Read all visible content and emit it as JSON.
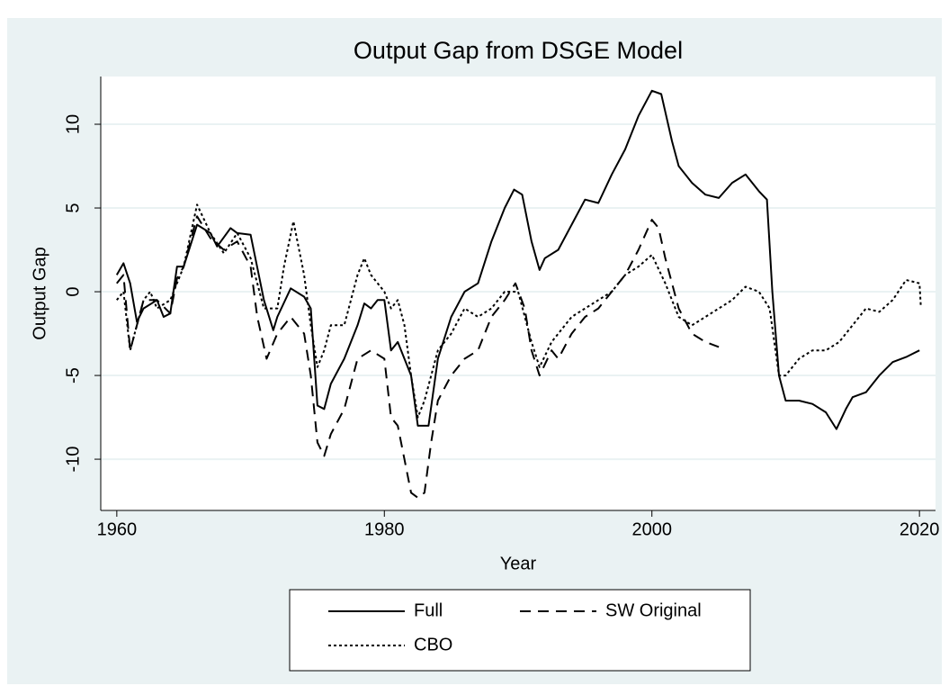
{
  "chart_data": {
    "type": "line",
    "title": "Output Gap from DSGE Model",
    "x_label": "Year",
    "y_label": "Output Gap",
    "xlim": [
      1958.8,
      2021.2
    ],
    "ylim": [
      -13.06,
      12.85
    ],
    "xticks": [
      1960,
      1980,
      2000,
      2020
    ],
    "yticks": [
      -10,
      -5,
      0,
      5,
      10
    ],
    "grid": true,
    "series": [
      {
        "name": "Full",
        "color": "#000000",
        "dash": "solid",
        "x": [
          1960,
          1960.5,
          1961,
          1961.5,
          1962,
          1963,
          1963.5,
          1964,
          1964.5,
          1965,
          1966,
          1967,
          1967.5,
          1968.5,
          1969,
          1970,
          1971,
          1971.7,
          1972,
          1973,
          1974,
          1974.5,
          1975,
          1975.5,
          1976,
          1977,
          1978,
          1978.5,
          1979,
          1979.5,
          1980,
          1980.5,
          1981,
          1981.5,
          1982,
          1982.5,
          1983.3,
          1984,
          1985,
          1986,
          1987,
          1988,
          1989,
          1989.7,
          1990.3,
          1991,
          1991.6,
          1992,
          1993,
          1994,
          1995,
          1996,
          1997,
          1998,
          1999,
          2000,
          2000.7,
          2001.5,
          2002,
          2003,
          2004,
          2005,
          2006,
          2007,
          2008,
          2008.6,
          2009,
          2009.5,
          2010,
          2011,
          2012,
          2013,
          2013.8,
          2014.5,
          2015,
          2016,
          2017,
          2018,
          2019,
          2020
        ],
        "values": [
          1,
          1.7,
          0.5,
          -1.8,
          -1,
          -0.5,
          -1.5,
          -1.3,
          1.5,
          1.5,
          4,
          3.5,
          2.7,
          3.8,
          3.5,
          3.4,
          -0.5,
          -2.3,
          -1.5,
          0.2,
          -0.3,
          -1,
          -6.8,
          -7,
          -5.5,
          -4,
          -2,
          -0.7,
          -1,
          -0.5,
          -0.5,
          -3.5,
          -3,
          -4,
          -5,
          -8,
          -8,
          -4,
          -1.5,
          0,
          0.5,
          3,
          5,
          6.1,
          5.8,
          3,
          1.3,
          2,
          2.5,
          4,
          5.5,
          5.3,
          7,
          8.5,
          10.5,
          12,
          11.8,
          9,
          7.5,
          6.5,
          5.8,
          5.6,
          6.5,
          7,
          6,
          5.5,
          0,
          -5,
          -6.5,
          -6.5,
          -6.7,
          -7.2,
          -8.2,
          -7,
          -6.3,
          -6,
          -5,
          -4.2,
          -3.9,
          -3.5
        ]
      },
      {
        "name": "SW Original",
        "color": "#000000",
        "dash": "dashed",
        "x": [
          1960,
          1960.5,
          1961,
          1961.5,
          1962,
          1963,
          1964,
          1964.5,
          1965,
          1966,
          1967,
          1968,
          1969,
          1970,
          1970.5,
          1971.2,
          1972,
          1973,
          1974,
          1974.5,
          1975,
          1975.5,
          1976,
          1977,
          1978,
          1979,
          1980,
          1980.5,
          1981,
          1981.5,
          1982,
          1982.5,
          1983,
          1983.5,
          1984,
          1985,
          1986,
          1987,
          1988,
          1989,
          1989.8,
          1990.5,
          1991,
          1991.6,
          1992.5,
          1993,
          1994,
          1995,
          1996,
          1997,
          1998,
          1999,
          2000,
          2000.5,
          2001,
          2002,
          2003,
          2004,
          2005
        ],
        "values": [
          0.5,
          1,
          -3.5,
          -2,
          -0.5,
          -0.5,
          -1.3,
          0.8,
          1.5,
          4.5,
          3.2,
          2.5,
          3,
          1.5,
          -1.5,
          -4,
          -2.5,
          -1.5,
          -2.5,
          -5,
          -9,
          -9.8,
          -8.5,
          -7,
          -4,
          -3.5,
          -4,
          -7.5,
          -8,
          -10,
          -12,
          -12.3,
          -12,
          -9,
          -6.5,
          -5,
          -4,
          -3.5,
          -1.5,
          -0.5,
          0.5,
          -1,
          -3.5,
          -5,
          -3.5,
          -4,
          -2.5,
          -1.5,
          -1,
          0,
          1,
          2.5,
          4.3,
          3.8,
          2,
          -1,
          -2.5,
          -3,
          -3.3
        ]
      },
      {
        "name": "CBO",
        "color": "#000000",
        "dash": "dotted",
        "x": [
          1960,
          1960.5,
          1961,
          1962,
          1962.5,
          1963,
          1964,
          1965,
          1966,
          1967,
          1968,
          1969,
          1970,
          1971,
          1972,
          1972.5,
          1973.2,
          1974,
          1974.5,
          1975,
          1975.5,
          1976,
          1977,
          1978,
          1978.5,
          1979,
          1980,
          1980.5,
          1981,
          1981.5,
          1982,
          1982.5,
          1983,
          1984,
          1985,
          1986,
          1987,
          1988,
          1989,
          1990,
          1991,
          1991.6,
          1992.5,
          1993,
          1994,
          1995,
          1996,
          1997,
          1998,
          1999,
          2000,
          2001,
          2002,
          2003,
          2004,
          2005,
          2006,
          2007,
          2008,
          2008.8,
          2009.5,
          2010,
          2011,
          2012,
          2013,
          2014,
          2015,
          2016,
          2017,
          2018,
          2019,
          2020,
          2020.1
        ],
        "values": [
          -0.5,
          0,
          -3.5,
          -0.5,
          0,
          -1,
          -0.5,
          1.5,
          5.2,
          3.5,
          2.3,
          3.5,
          2,
          -1,
          -1,
          1.5,
          4.2,
          1,
          -2,
          -4.5,
          -3.5,
          -2,
          -2,
          1,
          2,
          1,
          0,
          -1,
          -0.5,
          -2,
          -5,
          -7.5,
          -6.5,
          -3.5,
          -2.5,
          -1,
          -1.5,
          -1,
          0,
          0,
          -3,
          -4.5,
          -3,
          -2.5,
          -1.5,
          -1,
          -0.5,
          0,
          1,
          1.5,
          2.2,
          0.5,
          -1.5,
          -2,
          -1.5,
          -1,
          -0.5,
          0.3,
          0,
          -1,
          -5,
          -5,
          -4,
          -3.5,
          -3.5,
          -3,
          -2,
          -1,
          -1.2,
          -0.5,
          0.7,
          0.5,
          -0.8
        ]
      }
    ]
  }
}
